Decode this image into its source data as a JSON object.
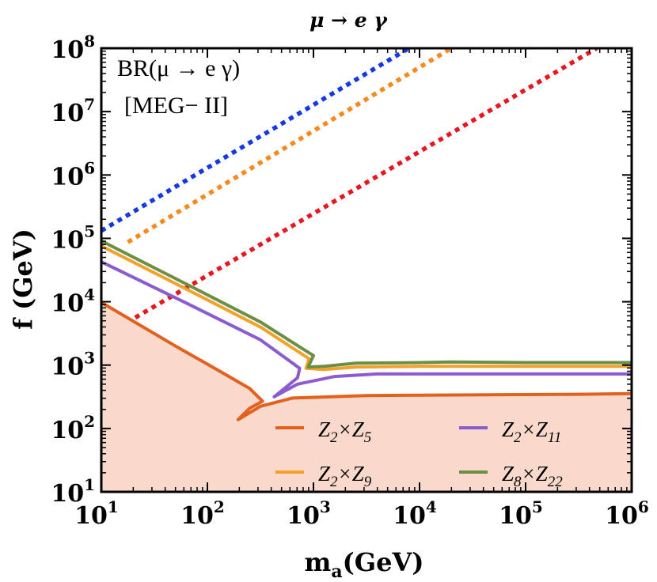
{
  "chart_data": {
    "type": "line",
    "title": "μ → e γ",
    "xlabel": "m",
    "xlabel_sub": "a",
    "xlabel_unit": "(GeV)",
    "ylabel": "f (GeV)",
    "xscale": "log",
    "yscale": "log",
    "xlim_exp": [
      1,
      6
    ],
    "ylim_exp": [
      1,
      8
    ],
    "x_ticks": [
      {
        "base": "10",
        "exp": "1"
      },
      {
        "base": "10",
        "exp": "2"
      },
      {
        "base": "10",
        "exp": "3"
      },
      {
        "base": "10",
        "exp": "4"
      },
      {
        "base": "10",
        "exp": "5"
      },
      {
        "base": "10",
        "exp": "6"
      }
    ],
    "y_ticks": [
      {
        "base": "10",
        "exp": "1"
      },
      {
        "base": "10",
        "exp": "2"
      },
      {
        "base": "10",
        "exp": "3"
      },
      {
        "base": "10",
        "exp": "4"
      },
      {
        "base": "10",
        "exp": "5"
      },
      {
        "base": "10",
        "exp": "6"
      },
      {
        "base": "10",
        "exp": "7"
      },
      {
        "base": "10",
        "exp": "8"
      }
    ],
    "annotation_lines": [
      "BR(μ → e γ)",
      "[MEG− II]"
    ],
    "excluded_region": {
      "series": "Z2×Z5",
      "fill": "#f9d9cb"
    },
    "series": [
      {
        "name": "Z2×Z5",
        "legend": {
          "a": "Z",
          "a_sub": "2",
          "b": "Z",
          "b_sub": "5"
        },
        "color": "#e2611f",
        "points": [
          [
            1,
            3.99
          ],
          [
            1.7,
            3.3
          ],
          [
            2.1,
            2.92
          ],
          [
            2.4,
            2.63
          ],
          [
            2.52,
            2.43
          ],
          [
            2.4,
            2.32
          ],
          [
            2.29,
            2.14
          ],
          [
            2.5,
            2.35
          ],
          [
            2.8,
            2.48
          ],
          [
            3.5,
            2.52
          ],
          [
            4.5,
            2.53
          ],
          [
            5.5,
            2.54
          ],
          [
            6,
            2.55
          ]
        ]
      },
      {
        "name": "Z2×Z11",
        "legend": {
          "a": "Z",
          "a_sub": "2",
          "b": "Z",
          "b_sub": "11"
        },
        "color": "#8a5cd0",
        "points": [
          [
            1,
            4.63
          ],
          [
            1.8,
            3.98
          ],
          [
            2.5,
            3.4
          ],
          [
            2.87,
            2.95
          ],
          [
            2.85,
            2.8
          ],
          [
            2.63,
            2.5
          ],
          [
            2.85,
            2.7
          ],
          [
            3.2,
            2.82
          ],
          [
            3.6,
            2.86
          ],
          [
            4.5,
            2.86
          ],
          [
            5.5,
            2.86
          ],
          [
            6,
            2.86
          ]
        ]
      },
      {
        "name": "Z2×Z9",
        "legend": {
          "a": "Z",
          "a_sub": "2",
          "b": "Z",
          "b_sub": "9"
        },
        "color": "#f2a12a",
        "points": [
          [
            1,
            4.88
          ],
          [
            1.8,
            4.2
          ],
          [
            2.5,
            3.6
          ],
          [
            2.96,
            3.1
          ],
          [
            2.93,
            2.95
          ],
          [
            3.1,
            2.93
          ],
          [
            3.4,
            2.97
          ],
          [
            4,
            2.98
          ],
          [
            5,
            2.98
          ],
          [
            6,
            2.98
          ]
        ]
      },
      {
        "name": "Z8×Z22",
        "legend": {
          "a": "Z",
          "a_sub": "8",
          "b": "Z",
          "b_sub": "22"
        },
        "color": "#6b8f45",
        "points": [
          [
            1,
            4.96
          ],
          [
            1.8,
            4.28
          ],
          [
            2.5,
            3.68
          ],
          [
            3.0,
            3.15
          ],
          [
            2.95,
            2.97
          ],
          [
            3.1,
            2.98
          ],
          [
            3.4,
            3.03
          ],
          [
            4,
            3.04
          ],
          [
            4.3,
            3.05
          ],
          [
            5,
            3.04
          ],
          [
            6,
            3.04
          ]
        ]
      }
    ],
    "dashed_lines": [
      {
        "name": "blue-dotted-bound",
        "color": "#1438e6",
        "points": [
          [
            1,
            5.12
          ],
          [
            3.9,
            8
          ]
        ]
      },
      {
        "name": "orange-dotted-bound",
        "color": "#f58a1e",
        "points": [
          [
            1.25,
            4.94
          ],
          [
            4.3,
            8
          ]
        ]
      },
      {
        "name": "red-dotted-bound",
        "color": "#e8171f",
        "points": [
          [
            1.32,
            3.75
          ],
          [
            5.67,
            8
          ]
        ]
      }
    ]
  }
}
